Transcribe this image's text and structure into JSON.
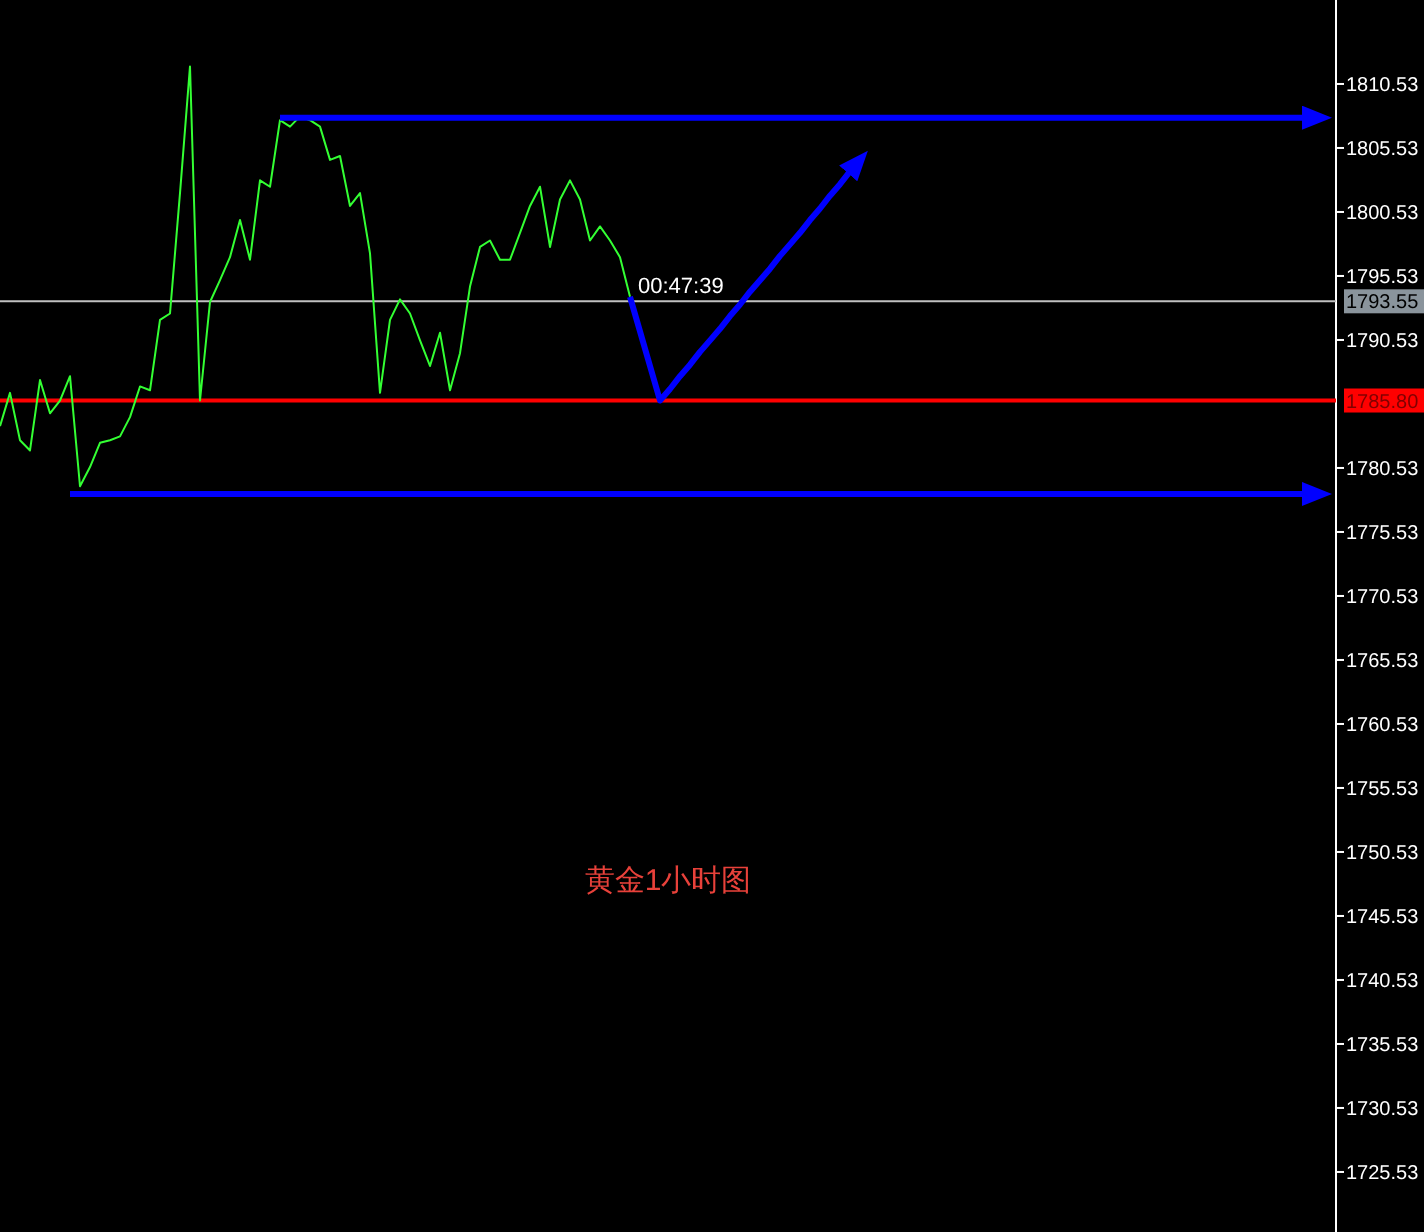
{
  "chart_data": {
    "type": "line",
    "title": "黄金1小时图",
    "tick_labels": "y",
    "ylim": [
      1720.84,
      1817.09
    ],
    "yticks": [
      1725.53,
      1730.53,
      1735.53,
      1740.53,
      1745.53,
      1750.53,
      1755.53,
      1760.53,
      1765.53,
      1770.53,
      1775.53,
      1780.53,
      1790.53,
      1795.53,
      1800.53,
      1805.53,
      1810.53
    ],
    "categories": [
      null,
      null,
      null,
      null,
      null,
      null,
      null,
      null,
      null,
      null,
      null,
      null,
      null,
      null,
      null,
      null,
      null,
      null,
      null,
      null,
      null,
      null,
      null,
      null,
      null,
      null,
      null,
      null,
      null,
      null,
      null,
      null,
      null,
      null,
      null,
      null,
      null,
      null,
      null,
      null,
      null,
      null,
      null,
      null,
      null,
      null,
      null,
      null,
      null,
      null,
      null,
      null,
      null,
      null,
      null,
      null,
      null,
      null,
      null,
      null,
      null,
      null,
      null,
      null,
      null,
      null,
      null,
      null,
      null,
      null,
      null,
      null,
      null,
      null,
      null,
      null,
      null,
      null,
      null,
      null,
      null,
      null,
      null,
      null,
      null,
      null,
      null,
      null,
      null,
      null,
      null,
      null,
      null,
      null,
      null,
      null,
      null,
      null,
      null,
      null,
      null,
      null,
      null,
      null,
      null,
      null,
      null,
      null,
      null,
      null,
      null,
      null,
      null,
      null,
      null,
      null,
      null,
      null,
      null,
      null,
      null,
      null,
      null,
      null,
      null,
      null,
      null,
      null,
      null,
      null,
      null,
      null,
      null,
      null
    ],
    "series": [
      {
        "color": "#33ff33",
        "values": [
          1783.8,
          1786.4,
          1782.7,
          1781.9,
          1787.4,
          1784.8,
          1785.8,
          1787.7,
          1779.1,
          1780.6,
          1782.5,
          1782.7,
          1783.0,
          1784.5,
          1786.9,
          1786.6,
          1792.1,
          1792.6,
          1802.0,
          1811.9,
          1785.8,
          1793.5,
          1795.2,
          1797.0,
          1799.9,
          1796.8,
          1803.0,
          1802.5,
          1807.7,
          1807.2,
          1808.0,
          1807.7,
          1807.2,
          1804.6,
          1804.9,
          1801.0,
          1802.0,
          1797.3,
          1786.4,
          1792.1,
          1793.7,
          1792.6,
          1790.5,
          1788.5,
          1791.1,
          1786.6,
          1789.5,
          1794.7,
          1797.8,
          1798.3,
          1796.8,
          1796.8,
          1798.9,
          1801.0,
          1802.5,
          1797.8,
          1801.5,
          1803.0,
          1801.5,
          1798.3,
          1799.4,
          1798.3,
          1797.0,
          1793.9,
          null,
          null,
          null,
          null,
          null,
          null,
          null,
          null,
          null,
          null,
          null,
          null,
          null,
          null,
          null,
          null,
          null,
          null,
          null,
          null,
          null,
          null,
          null,
          null,
          null,
          null,
          null,
          null,
          null,
          null,
          null,
          null,
          null,
          null,
          null,
          null,
          null,
          null,
          null,
          null,
          null,
          null,
          null,
          null,
          null,
          null,
          null,
          null,
          null,
          null,
          null,
          null,
          null,
          null,
          null,
          null,
          null,
          null,
          null,
          null,
          null,
          null,
          null,
          null,
          null,
          null,
          null,
          null,
          null,
          null
        ]
      },
      {
        "color": "#0000ff",
        "values": [
          null,
          null,
          null,
          null,
          null,
          null,
          null,
          null,
          null,
          null,
          null,
          null,
          null,
          null,
          null,
          null,
          null,
          null,
          null,
          null,
          null,
          null,
          null,
          null,
          null,
          null,
          null,
          null,
          1807.9,
          1807.9,
          1807.9,
          1807.9,
          1807.9,
          1807.9,
          1807.9,
          1807.9,
          1807.9,
          1807.9,
          1807.9,
          1807.9,
          1807.9,
          1807.9,
          1807.9,
          1807.9,
          1807.9,
          1807.9,
          1807.9,
          1807.9,
          1807.9,
          1807.9,
          1807.9,
          1807.9,
          1807.9,
          1807.9,
          1807.9,
          1807.9,
          1807.9,
          1807.9,
          1807.9,
          1807.9,
          1807.9,
          1807.9,
          1807.9,
          1807.9,
          1807.9,
          1807.9,
          1807.9,
          1807.9,
          1807.9,
          1807.9,
          1807.9,
          1807.9,
          1807.9,
          1807.9,
          1807.9,
          1807.9,
          1807.9,
          1807.9,
          1807.9,
          1807.9,
          1807.9,
          1807.9,
          1807.9,
          1807.9,
          1807.9,
          1807.9,
          1807.9,
          1807.9,
          1807.9,
          1807.9,
          1807.9,
          1807.9,
          1807.9,
          1807.9,
          1807.9,
          1807.9,
          1807.9,
          1807.9,
          1807.9,
          1807.9,
          1807.9,
          1807.9,
          1807.9,
          1807.9,
          1807.9,
          1807.9,
          1807.9,
          1807.9,
          1807.9,
          1807.9,
          1807.9,
          1807.9,
          1807.9,
          1807.9,
          1807.9,
          1807.9,
          1807.9,
          1807.9,
          1807.9,
          1807.9,
          1807.9,
          1807.9,
          1807.9,
          1807.9,
          1807.9,
          1807.9,
          1807.9,
          1807.9,
          1807.9,
          1807.9,
          1807.9,
          1807.9,
          1807.9,
          null
        ]
      },
      {
        "color": "#0000ff",
        "values": [
          null,
          null,
          null,
          null,
          null,
          null,
          null,
          1778.5,
          1778.5,
          1778.5,
          1778.5,
          1778.5,
          1778.5,
          1778.5,
          1778.5,
          1778.5,
          1778.5,
          1778.5,
          1778.5,
          1778.5,
          1778.5,
          1778.5,
          1778.5,
          1778.5,
          1778.5,
          1778.5,
          1778.5,
          1778.5,
          1778.5,
          1778.5,
          1778.5,
          1778.5,
          1778.5,
          1778.5,
          1778.5,
          1778.5,
          1778.5,
          1778.5,
          1778.5,
          1778.5,
          1778.5,
          1778.5,
          1778.5,
          1778.5,
          1778.5,
          1778.5,
          1778.5,
          1778.5,
          1778.5,
          1778.5,
          1778.5,
          1778.5,
          1778.5,
          1778.5,
          1778.5,
          1778.5,
          1778.5,
          1778.5,
          1778.5,
          1778.5,
          1778.5,
          1778.5,
          1778.5,
          1778.5,
          1778.5,
          1778.5,
          1778.5,
          1778.5,
          1778.5,
          1778.5,
          1778.5,
          1778.5,
          1778.5,
          1778.5,
          1778.5,
          1778.5,
          1778.5,
          1778.5,
          1778.5,
          1778.5,
          1778.5,
          1778.5,
          1778.5,
          1778.5,
          1778.5,
          1778.5,
          1778.5,
          1778.5,
          1778.5,
          1778.5,
          1778.5,
          1778.5,
          1778.5,
          1778.5,
          1778.5,
          1778.5,
          1778.5,
          1778.5,
          1778.5,
          1778.5,
          1778.5,
          1778.5,
          1778.5,
          1778.5,
          1778.5,
          1778.5,
          1778.5,
          1778.5,
          1778.5,
          1778.5,
          1778.5,
          1778.5,
          1778.5,
          1778.5,
          1778.5,
          1778.5,
          1778.5,
          1778.5,
          1778.5,
          1778.5,
          1778.5,
          1778.5,
          1778.5,
          1778.5,
          1778.5,
          1778.5,
          1778.5,
          1778.5,
          1778.5,
          1778.5,
          1778.5,
          1778.5,
          1778.5,
          null
        ]
      },
      {
        "color": "#0000ff",
        "values": [
          null,
          null,
          null,
          null,
          null,
          null,
          null,
          null,
          null,
          null,
          null,
          null,
          null,
          null,
          null,
          null,
          null,
          null,
          null,
          null,
          null,
          null,
          null,
          null,
          null,
          null,
          null,
          null,
          null,
          null,
          null,
          null,
          null,
          null,
          null,
          null,
          null,
          null,
          null,
          null,
          null,
          null,
          null,
          null,
          null,
          null,
          null,
          null,
          null,
          null,
          null,
          null,
          null,
          null,
          null,
          null,
          null,
          null,
          null,
          null,
          null,
          null,
          null,
          1793.9,
          1791.2,
          1788.5,
          1785.8,
          1786.7,
          1787.7,
          1788.6,
          1789.6,
          1790.5,
          1791.4,
          1792.4,
          1793.3,
          1794.3,
          1795.2,
          1796.1,
          1797.1,
          1798.0,
          1798.9,
          1799.9,
          1800.8,
          1801.8,
          1802.7,
          1803.7,
          1804.6,
          null,
          null,
          null,
          null,
          null,
          null,
          null,
          null,
          null,
          null,
          null,
          null,
          null,
          null,
          null,
          null,
          null,
          null,
          null,
          null,
          null,
          null,
          null,
          null,
          null,
          null,
          null,
          null,
          null,
          null,
          null,
          null,
          null,
          null,
          null,
          null,
          null,
          null,
          null,
          null,
          null,
          null,
          null,
          null,
          null,
          null,
          null
        ]
      }
    ],
    "ref_lines": [
      {
        "axis": "y",
        "value": 1793.55,
        "label": "1793.55",
        "color": "#c0c0c0"
      },
      {
        "axis": "y",
        "value": 1785.8,
        "label": "1785.80",
        "color": "#ff0000"
      }
    ],
    "annotations": [
      {
        "text": "00:47:39",
        "y": 1793.55
      }
    ]
  }
}
